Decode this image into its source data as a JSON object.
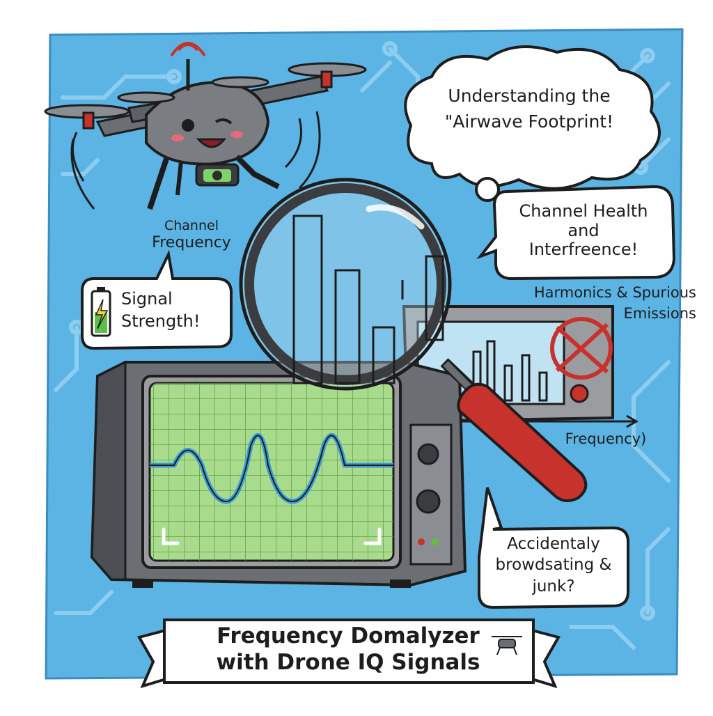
{
  "thought_bubble": {
    "line1": "Understanding the",
    "line2": "\"Airwave Footprint!"
  },
  "health_bubble": {
    "line1": "Channel Health",
    "line2": "and",
    "line3": "Interfreence!"
  },
  "channel_label": {
    "line1": "Channel",
    "line2": "Frequency"
  },
  "signal_bubble": {
    "line1": "Signal",
    "line2": "Strength!"
  },
  "harmonics_label": {
    "line1": "Harmonics  &  Spurious",
    "line2": "Emissions"
  },
  "frequency_label": "Frequency)",
  "accident_bubble": {
    "line1": "Accidentaly",
    "line2": "browdsating &",
    "line3": "junk?"
  },
  "banner": {
    "line1": "Frequency Domalyzer",
    "line2": "with Drone IQ Signals"
  },
  "colors": {
    "sky": "#5cb4e4",
    "circuit": "#8ccdf0",
    "screen_green": "#a8dc8c",
    "wave_blue": "#3b9ad6",
    "handle_red": "#c8322d",
    "drone_grey": "#6b6e72",
    "ink": "#1d1d1d"
  },
  "icons": [
    "drone",
    "antenna-signal-icon",
    "battery-icon",
    "lightning-icon",
    "magnifying-glass",
    "oscilloscope",
    "spectrum-analyzer",
    "no-interference-icon",
    "mini-drone-icon"
  ]
}
